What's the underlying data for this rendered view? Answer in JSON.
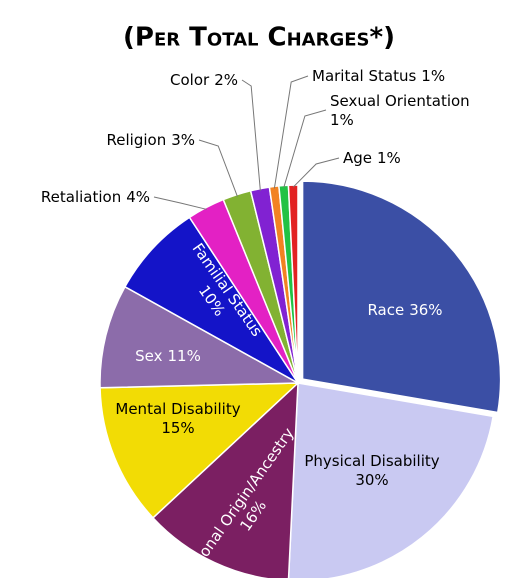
{
  "chart_data": {
    "type": "pie",
    "title": "(Per Total Charges*)",
    "categories": [
      "Race",
      "Physical Disability",
      "National Origin/Ancestry",
      "Mental Disability",
      "Sex",
      "Familial Status",
      "Retaliation",
      "Religion",
      "Color",
      "Marital Status",
      "Sexual Orientation",
      "Age"
    ],
    "values": [
      36,
      30,
      16,
      15,
      11,
      10,
      4,
      3,
      2,
      1,
      1,
      1
    ],
    "value_labels": [
      "36%",
      "30%",
      "16%",
      "15%",
      "11%",
      "10%",
      "4%",
      "3%",
      "2%",
      "1%",
      "1%",
      "1%"
    ],
    "colors": [
      "#3b4fa5",
      "#c9c9f2",
      "#7b1f62",
      "#f2dc05",
      "#8c6caa",
      "#1414c8",
      "#e321c4",
      "#82b232",
      "#8122d2",
      "#f28222",
      "#22c244",
      "#e22222"
    ]
  }
}
